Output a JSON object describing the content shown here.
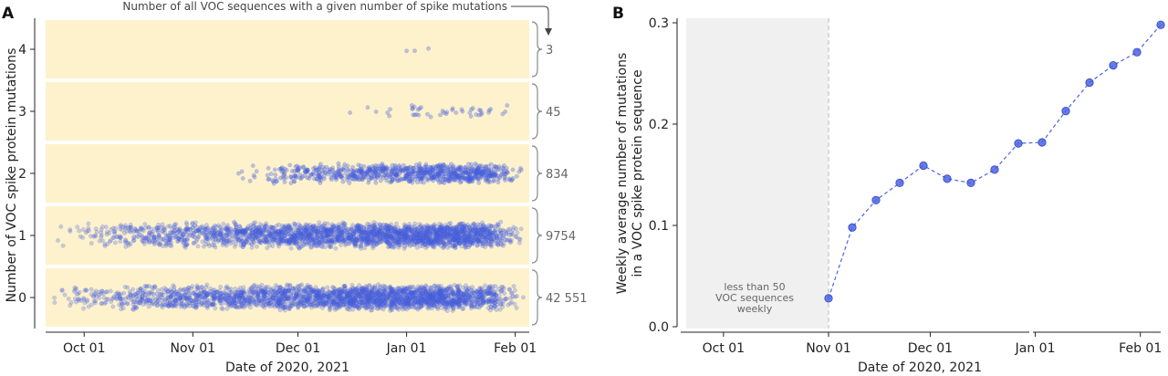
{
  "panel_a": {
    "letter": "A",
    "annotation": "Number of all VOC sequences with a given number of spike mutations"
  },
  "panel_b": {
    "letter": "B",
    "shade_note": [
      "less  than  50",
      "VOC sequences",
      "weekly"
    ]
  },
  "colors": {
    "strip_bg": "#fdf2cc",
    "points": "#4b63e6",
    "line": "#4b63e6",
    "shade": "#f0f0f0",
    "brace": "#888888"
  },
  "chart_data": [
    {
      "type": "scatter",
      "title": "",
      "xlabel": "Date of 2020, 2021",
      "ylabel": "Number of VOC spike protein mutations",
      "x_ticks": [
        "Oct 01",
        "Nov 01",
        "Dec 01",
        "Jan 01",
        "Feb 01"
      ],
      "y_ticks": [
        "0",
        "1",
        "2",
        "3",
        "4"
      ],
      "xlim": [
        "2020-09-20",
        "2021-02-05"
      ],
      "grid": false,
      "categories": [
        {
          "mutations": 4,
          "total_sequences": "3",
          "first_date": "2021-01-01",
          "peak_date": "2021-01-05",
          "last_date": "2021-01-08"
        },
        {
          "mutations": 3,
          "total_sequences": "45",
          "first_date": "2020-12-10",
          "peak_date": "2021-01-18",
          "last_date": "2021-01-31"
        },
        {
          "mutations": 2,
          "total_sequences": "834",
          "first_date": "2020-11-12",
          "peak_date": "2021-01-20",
          "last_date": "2021-02-03"
        },
        {
          "mutations": 1,
          "total_sequences": "9754",
          "first_date": "2020-09-22",
          "peak_date": "2021-01-15",
          "last_date": "2021-02-04"
        },
        {
          "mutations": 0,
          "total_sequences": "42 551",
          "first_date": "2020-09-20",
          "peak_date": "2021-01-10",
          "last_date": "2021-02-04"
        }
      ]
    },
    {
      "type": "line",
      "title": "",
      "xlabel": "Date of 2020, 2021",
      "ylabel": [
        "Weekly average number of mutations",
        "in a VOC spike protein sequence"
      ],
      "x_ticks": [
        "Oct 01",
        "Nov 01",
        "Dec 01",
        "Jan 01",
        "Feb 01"
      ],
      "y_ticks": [
        "0.0",
        "0.1",
        "0.2",
        "0.3"
      ],
      "ylim": [
        0,
        0.3
      ],
      "grid": false,
      "shaded_region": [
        "2020-09-20",
        "2020-11-01"
      ],
      "series": [
        {
          "x": [
            "2020-11-01",
            "2020-11-08",
            "2020-11-15",
            "2020-11-22",
            "2020-11-29",
            "2020-12-06",
            "2020-12-13",
            "2020-12-20",
            "2020-12-27",
            "2021-01-03",
            "2021-01-10",
            "2021-01-17",
            "2021-01-24",
            "2021-01-31",
            "2021-02-07"
          ],
          "values": [
            0.028,
            0.098,
            0.125,
            0.142,
            0.159,
            0.146,
            0.142,
            0.155,
            0.181,
            0.182,
            0.213,
            0.241,
            0.258,
            0.271,
            0.298
          ]
        }
      ]
    }
  ]
}
